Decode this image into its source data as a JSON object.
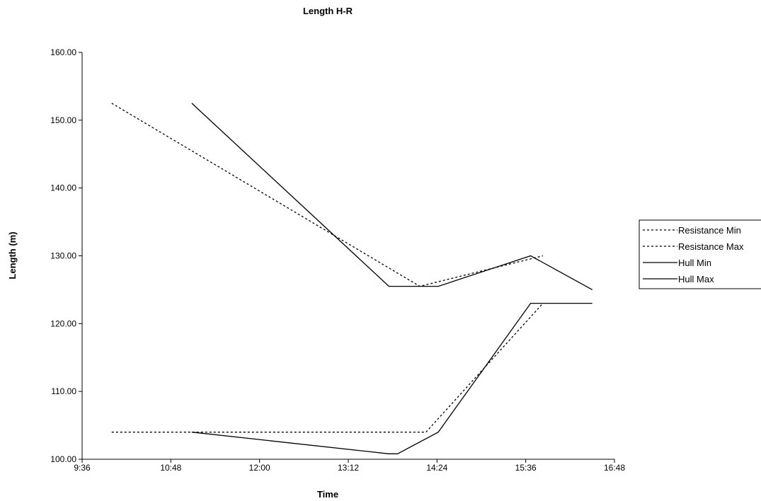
{
  "chart_data": {
    "type": "line",
    "title": "Length H-R",
    "xlabel": "Time",
    "ylabel": "Length (m)",
    "xlim": [
      "9:36",
      "16:48"
    ],
    "ylim": [
      100,
      160
    ],
    "x_ticks": [
      "9:36",
      "10:48",
      "12:00",
      "13:12",
      "14:24",
      "15:36",
      "16:48"
    ],
    "y_ticks": [
      "100.00",
      "110.00",
      "120.00",
      "130.00",
      "140.00",
      "150.00",
      "160.00"
    ],
    "grid": false,
    "legend_position": "right",
    "series": [
      {
        "name": "Resistance Min",
        "style": "dotted",
        "x": [
          "10:00",
          "14:15",
          "15:50"
        ],
        "y": [
          104.0,
          104.0,
          123.0
        ]
      },
      {
        "name": "Resistance Max",
        "style": "dotted",
        "x": [
          "10:00",
          "14:10",
          "15:50"
        ],
        "y": [
          152.5,
          125.5,
          130.0
        ]
      },
      {
        "name": "Hull Min",
        "style": "solid",
        "x": [
          "11:05",
          "13:45",
          "14:25",
          "15:40",
          "16:30"
        ],
        "y": [
          152.5,
          125.5,
          125.5,
          130.0,
          125.0
        ]
      },
      {
        "name": "Hull Max",
        "style": "solid",
        "x": [
          "11:05",
          "13:45",
          "13:52",
          "14:25",
          "15:40",
          "16:30"
        ],
        "y": [
          104.0,
          100.8,
          100.8,
          104.0,
          123.0,
          123.0
        ]
      }
    ]
  }
}
